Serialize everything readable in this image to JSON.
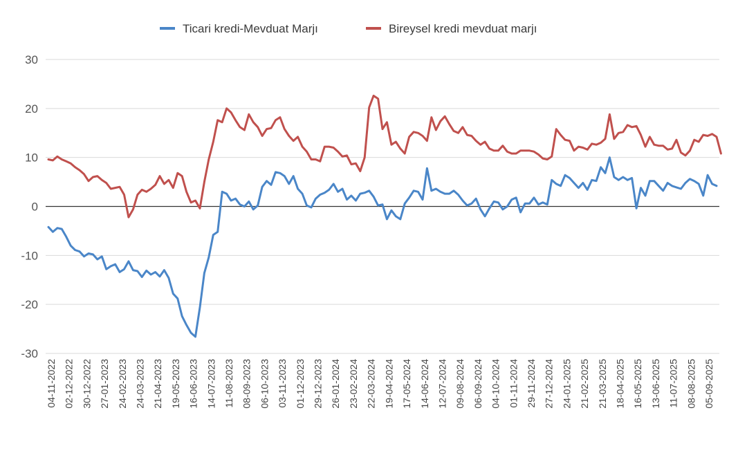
{
  "chart_data": {
    "type": "line",
    "title": "",
    "xlabel": "",
    "ylabel": "",
    "ylim": [
      -30,
      30
    ],
    "yticks": [
      -30,
      -20,
      -10,
      0,
      10,
      20,
      30
    ],
    "grid": true,
    "legend": "top-center",
    "colors": {
      "commercial": "#4a86c8",
      "retail": "#c0504d",
      "zero_line": "#333333",
      "grid": "#d9d9d9"
    },
    "x_tick_labels": [
      "04-11-2022",
      "02-12-2022",
      "30-12-2022",
      "27-01-2023",
      "24-02-2023",
      "24-03-2023",
      "21-04-2023",
      "19-05-2023",
      "16-06-2023",
      "14-07-2023",
      "11-08-2023",
      "08-09-2023",
      "06-10-2023",
      "03-11-2023",
      "01-12-2023",
      "29-12-2023",
      "26-01-2024",
      "23-02-2024",
      "22-03-2024",
      "19-04-2024",
      "17-05-2024",
      "14-06-2024",
      "12-07-2024",
      "09-08-2024",
      "06-09-2024",
      "04-10-2024",
      "01-11-2024",
      "29-11-2024",
      "27-12-2024",
      "24-01-2025",
      "21-02-2025",
      "21-03-2025",
      "18-04-2025",
      "16-05-2025",
      "13-06-2025",
      "11-07-2025",
      "08-08-2025",
      "05-09-2025"
    ],
    "series": [
      {
        "name": "Ticari kredi-Mevduat Marjı",
        "color": "#4a86c8",
        "values": [
          -4.2,
          -5.2,
          -4.4,
          -4.6,
          -6.2,
          -8,
          -8.9,
          -9.2,
          -10.2,
          -9.6,
          -9.8,
          -10.8,
          -10.2,
          -12.8,
          -12.2,
          -11.8,
          -13.4,
          -12.8,
          -11.2,
          -13,
          -13.2,
          -14.4,
          -13.1,
          -13.9,
          -13.4,
          -14.3,
          -13,
          -14.6,
          -17.8,
          -18.8,
          -22.4,
          -24.2,
          -25.8,
          -26.6,
          -20.6,
          -13.6,
          -10.4,
          -5.8,
          -5.2,
          3,
          2.6,
          1.2,
          1.6,
          0.4,
          0,
          1,
          -0.6,
          0.2,
          4,
          5.2,
          4.4,
          7,
          6.8,
          6.2,
          4.6,
          6.2,
          3.6,
          2.6,
          0.2,
          -0.2,
          1.6,
          2.4,
          2.8,
          3.4,
          4.6,
          3,
          3.6,
          1.4,
          2.2,
          1.2,
          2.6,
          2.8,
          3.2,
          2,
          0.2,
          0.4,
          -2.6,
          -0.8,
          -2,
          -2.6,
          0.6,
          1.8,
          3.2,
          3,
          1.4,
          7.8,
          3.2,
          3.6,
          3,
          2.6,
          2.6,
          3.2,
          2.4,
          1.2,
          0.2,
          0.6,
          1.6,
          -0.6,
          -2,
          -0.4,
          1,
          0.8,
          -0.6,
          0,
          1.4,
          1.8,
          -1.2,
          0.6,
          0.6,
          1.8,
          0.4,
          0.8,
          0.4,
          5.4,
          4.6,
          4.2,
          6.4,
          5.8,
          4.8,
          3.8,
          4.8,
          3.4,
          5.4,
          5.2,
          8,
          6.8,
          10,
          6,
          5.4,
          6,
          5.4,
          5.8,
          -0.4,
          3.8,
          2.2,
          5.2,
          5.2,
          4.2,
          3.2,
          4.8,
          4.2,
          3.9,
          3.6,
          4.8,
          5.6,
          5.2,
          4.6,
          2.2,
          6.4,
          4.6,
          4.2
        ]
      },
      {
        "name": "Bireysel kredi mevduat marjı",
        "color": "#c0504d",
        "values": [
          9.6,
          9.4,
          10.2,
          9.6,
          9.2,
          8.8,
          8,
          7.4,
          6.6,
          5.2,
          6,
          6.2,
          5.4,
          4.8,
          3.6,
          3.8,
          4,
          2.4,
          -2.2,
          -0.6,
          2.4,
          3.4,
          3,
          3.6,
          4.4,
          6.2,
          4.6,
          5.4,
          3.8,
          6.8,
          6.2,
          3,
          0.8,
          1.2,
          -0.4,
          5,
          9.6,
          13.2,
          17.6,
          17.2,
          20,
          19.2,
          17.6,
          16.2,
          15.6,
          18.8,
          17.2,
          16.2,
          14.4,
          15.8,
          16,
          17.6,
          18.2,
          15.8,
          14.4,
          13.4,
          14.2,
          12.2,
          11.2,
          9.6,
          9.6,
          9.2,
          12.2,
          12.2,
          12,
          11.2,
          10.2,
          10.4,
          8.6,
          8.8,
          7.2,
          10,
          20.2,
          22.6,
          22,
          15.8,
          17.2,
          12.6,
          13.2,
          11.8,
          10.8,
          14.2,
          15.2,
          15,
          14.4,
          13.4,
          18.2,
          15.6,
          17.4,
          18.4,
          16.8,
          15.4,
          15,
          16.2,
          14.6,
          14.4,
          13.4,
          12.6,
          13.2,
          11.8,
          11.4,
          11.4,
          12.4,
          11.2,
          10.8,
          10.8,
          11.4,
          11.4,
          11.4,
          11.2,
          10.6,
          9.8,
          9.6,
          10.2,
          15.8,
          14.6,
          13.6,
          13.4,
          11.4,
          12.2,
          12,
          11.6,
          12.8,
          12.6,
          13,
          13.8,
          18.8,
          13.8,
          15,
          15.2,
          16.6,
          16.2,
          16.4,
          14.6,
          12.2,
          14.2,
          12.6,
          12.4,
          12.4,
          11.6,
          11.8,
          13.6,
          11,
          10.4,
          11.4,
          13.6,
          13.2,
          14.6,
          14.4,
          14.8,
          14.2,
          10.8
        ]
      }
    ]
  }
}
